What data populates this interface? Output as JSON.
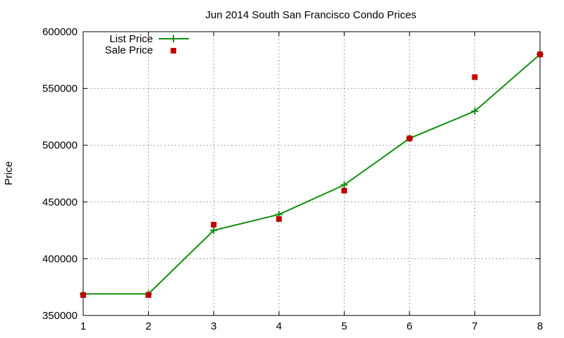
{
  "chart_data": {
    "type": "line",
    "title": "Jun 2014 South San Francisco Condo Prices",
    "xlabel": "",
    "ylabel": "Price",
    "xlim": [
      1,
      8
    ],
    "ylim": [
      350000,
      600000
    ],
    "x_ticks": [
      1,
      2,
      3,
      4,
      5,
      6,
      7,
      8
    ],
    "y_ticks": [
      350000,
      400000,
      450000,
      500000,
      550000,
      600000
    ],
    "grid": true,
    "legend_position": "top-left",
    "series": [
      {
        "name": "List Price",
        "style": "line+cross",
        "color": "#109010",
        "x": [
          1,
          2,
          3,
          4,
          5,
          6,
          7,
          8
        ],
        "values": [
          369000,
          369000,
          425000,
          439000,
          465000,
          506000,
          530000,
          580000
        ]
      },
      {
        "name": "Sale Price",
        "style": "square",
        "color": "#c00000",
        "x": [
          1,
          2,
          3,
          4,
          5,
          6,
          7,
          8
        ],
        "values": [
          368000,
          368000,
          430000,
          435000,
          460000,
          506000,
          560000,
          580000
        ]
      }
    ]
  }
}
